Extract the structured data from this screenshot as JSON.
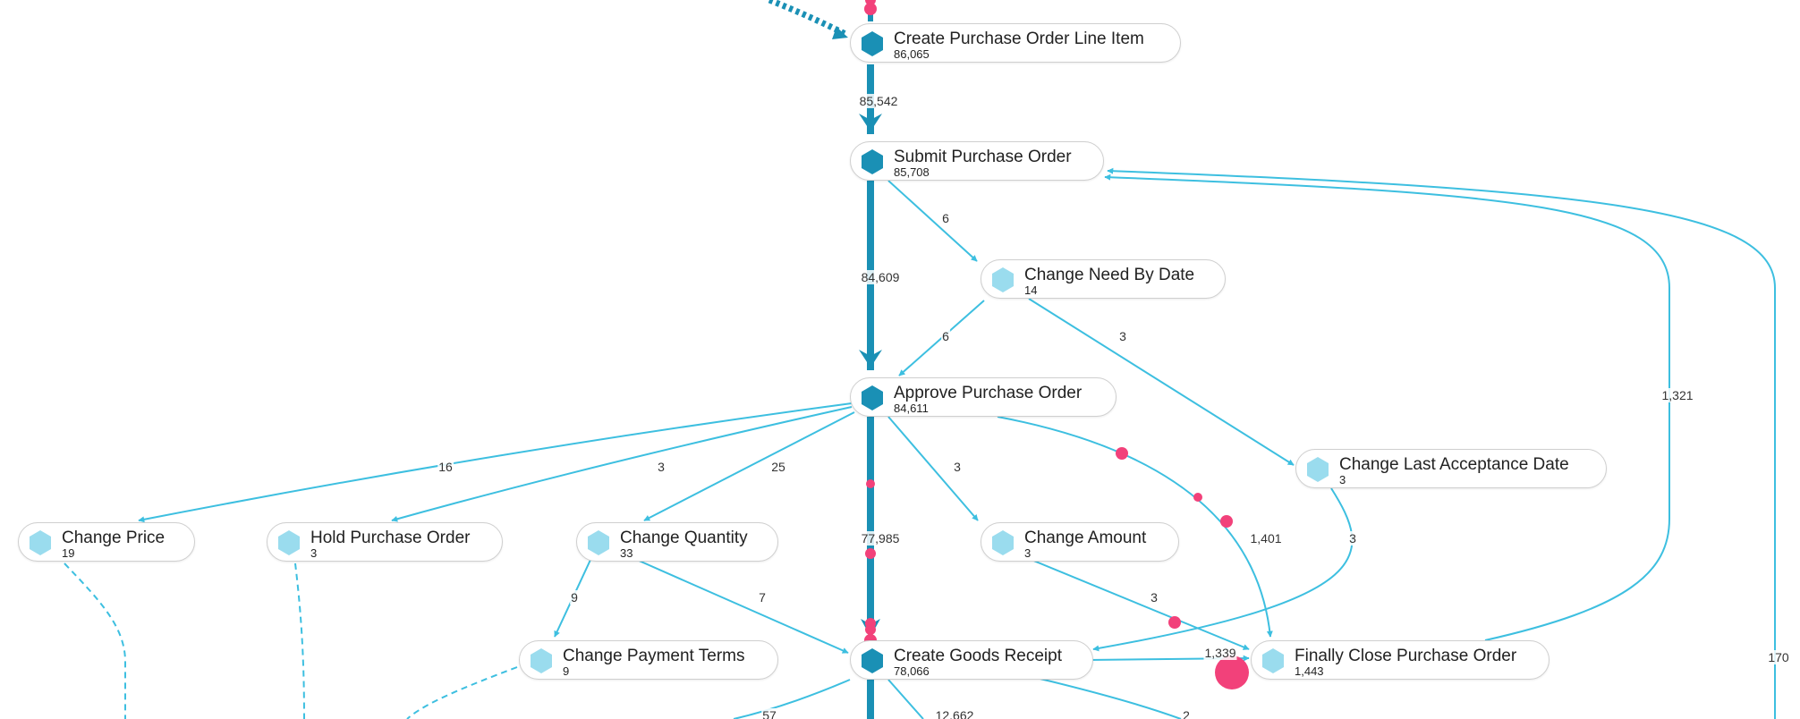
{
  "diagram": {
    "colors": {
      "main_flow": "#1a90b5",
      "minor_flow": "#3dbfe0",
      "main_node_icon": "#1a90b5",
      "minor_node_icon": "#9adcee",
      "token": "#f2417a"
    },
    "nodes": {
      "create_po_line_item": {
        "name": "Create Purchase Order Line Item",
        "count": "86,065"
      },
      "submit_po": {
        "name": "Submit Purchase Order",
        "count": "85,708"
      },
      "change_need_by_date": {
        "name": "Change Need By Date",
        "count": "14"
      },
      "approve_po": {
        "name": "Approve Purchase Order",
        "count": "84,611"
      },
      "change_last_acceptance_date": {
        "name": "Change Last Acceptance Date",
        "count": "3"
      },
      "change_price": {
        "name": "Change Price",
        "count": "19"
      },
      "hold_po": {
        "name": "Hold Purchase Order",
        "count": "3"
      },
      "change_quantity": {
        "name": "Change Quantity",
        "count": "33"
      },
      "change_amount": {
        "name": "Change Amount",
        "count": "3"
      },
      "change_payment_terms": {
        "name": "Change Payment Terms",
        "count": "9"
      },
      "create_goods_receipt": {
        "name": "Create Goods Receipt",
        "count": "78,066"
      },
      "finally_close_po": {
        "name": "Finally Close Purchase Order",
        "count": "1,443"
      }
    },
    "edges": {
      "line_item_to_submit": "85,542",
      "submit_to_approve": "84,609",
      "submit_to_need_by": "6",
      "need_by_to_approve": "6",
      "need_by_to_last_acceptance": "3",
      "approve_to_price": "16",
      "approve_to_hold": "3",
      "approve_to_quantity": "25",
      "approve_to_amount": "3",
      "approve_to_goods_receipt": "77,985",
      "approve_to_finally_close": "1,401",
      "last_acceptance_to_goods_receipt": "3",
      "finally_close_to_submit": "1,321",
      "quantity_to_payment_terms": "9",
      "quantity_to_goods_receipt": "7",
      "amount_to_finally_close": "3",
      "goods_receipt_to_finally_close": "1,339",
      "goods_receipt_out_left": "57",
      "goods_receipt_out_down": "12,662",
      "goods_receipt_out_right": "2",
      "far_right_to_submit": "170"
    }
  }
}
